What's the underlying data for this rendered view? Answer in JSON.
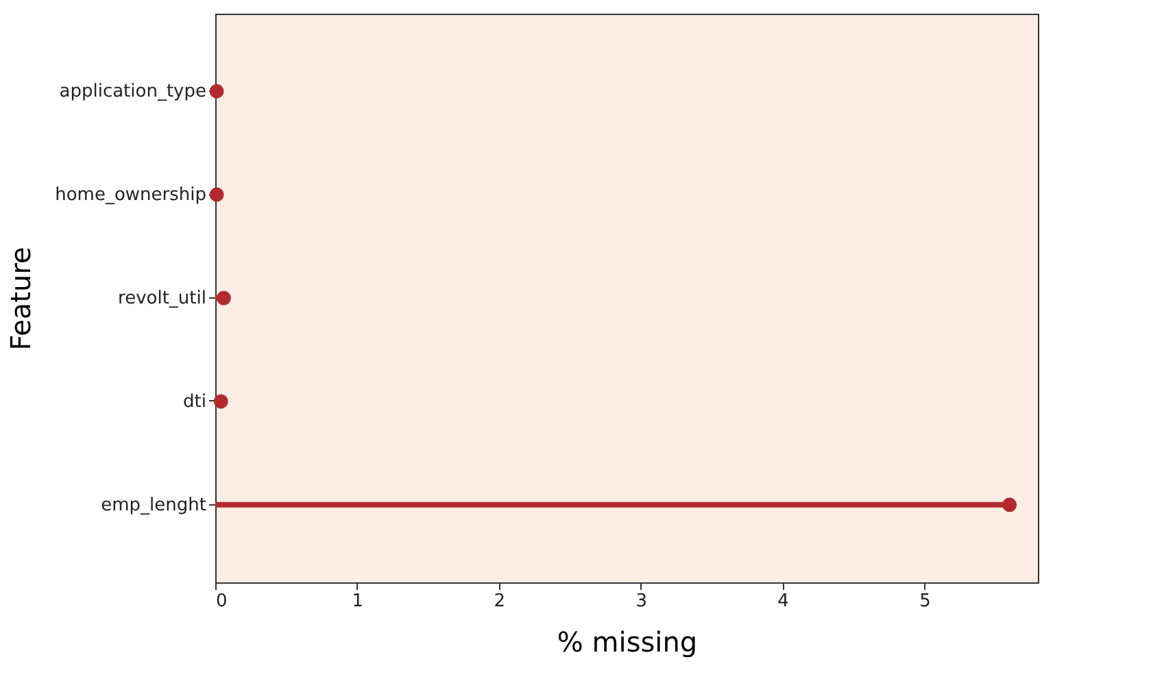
{
  "chart_data": {
    "type": "lollipop",
    "orientation": "horizontal",
    "xlabel": "% missing",
    "ylabel": "Feature",
    "categories": [
      "application_type",
      "home_ownership",
      "revolt_util",
      "dti",
      "emp_lenght"
    ],
    "values": [
      0.01,
      0.01,
      0.06,
      0.04,
      5.6
    ],
    "color": "#b22a2e",
    "marker": "circle",
    "xlim": [
      0,
      5.8
    ],
    "xticks": [
      0,
      1,
      2,
      3,
      4,
      5
    ],
    "grid": false
  }
}
